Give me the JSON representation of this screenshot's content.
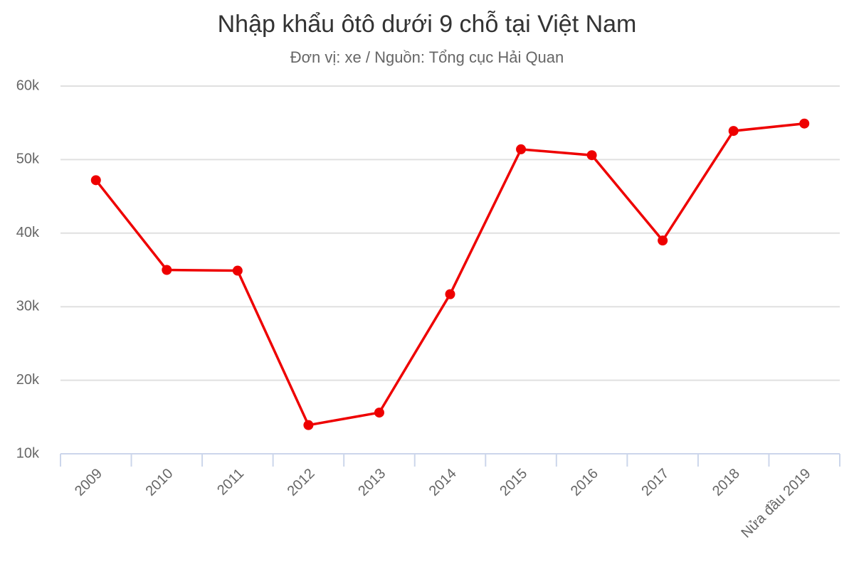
{
  "chart_data": {
    "type": "line",
    "title": "Nhập khẩu ôtô dưới 9 chỗ tại Việt Nam",
    "subtitle": "Đơn vị: xe / Nguồn: Tổng cục Hải Quan",
    "categories": [
      "2009",
      "2010",
      "2011",
      "2012",
      "2013",
      "2014",
      "2015",
      "2016",
      "2017",
      "2018",
      "Nửa đầu 2019"
    ],
    "values": [
      47200,
      35000,
      34900,
      13900,
      15600,
      31700,
      51400,
      50600,
      39000,
      53900,
      54900
    ],
    "color": "#ee0000",
    "ylim": [
      10000,
      60000
    ],
    "yticks": [
      {
        "value": 10000,
        "label": "10k"
      },
      {
        "value": 20000,
        "label": "20k"
      },
      {
        "value": 30000,
        "label": "30k"
      },
      {
        "value": 40000,
        "label": "40k"
      },
      {
        "value": 50000,
        "label": "50k"
      },
      {
        "value": 60000,
        "label": "60k"
      }
    ],
    "grid": true
  }
}
